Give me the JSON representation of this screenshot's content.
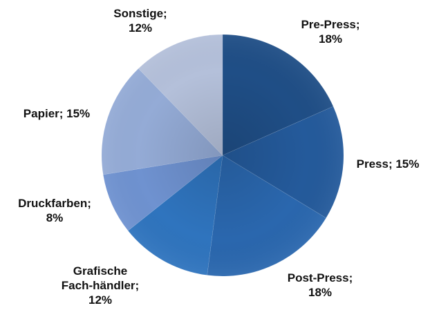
{
  "chart_data": {
    "type": "pie",
    "categories": [
      "Pre-Press",
      "Press",
      "Post-Press",
      "Grafische Fach-händler",
      "Druckfarben",
      "Papier",
      "Sonstige"
    ],
    "values": [
      18,
      15,
      18,
      12,
      8,
      15,
      12
    ],
    "unit": "%",
    "labels": [
      [
        "Pre-Press;",
        "18%"
      ],
      [
        "Press; 15%"
      ],
      [
        "Post-Press;",
        "18%"
      ],
      [
        "Grafische",
        "Fach-händler;",
        "12%"
      ],
      [
        "Druckfarben;",
        "8%"
      ],
      [
        "Papier; 15%"
      ],
      [
        "Sonstige;",
        "12%"
      ]
    ],
    "colors": [
      "#1f4e86",
      "#245a9b",
      "#2a67ae",
      "#2f74be",
      "#6f92d0",
      "#94abd6",
      "#b4c0da"
    ],
    "start_angle_deg": 0,
    "direction": "clockwise",
    "legend": "none",
    "data_labels": "outside"
  }
}
